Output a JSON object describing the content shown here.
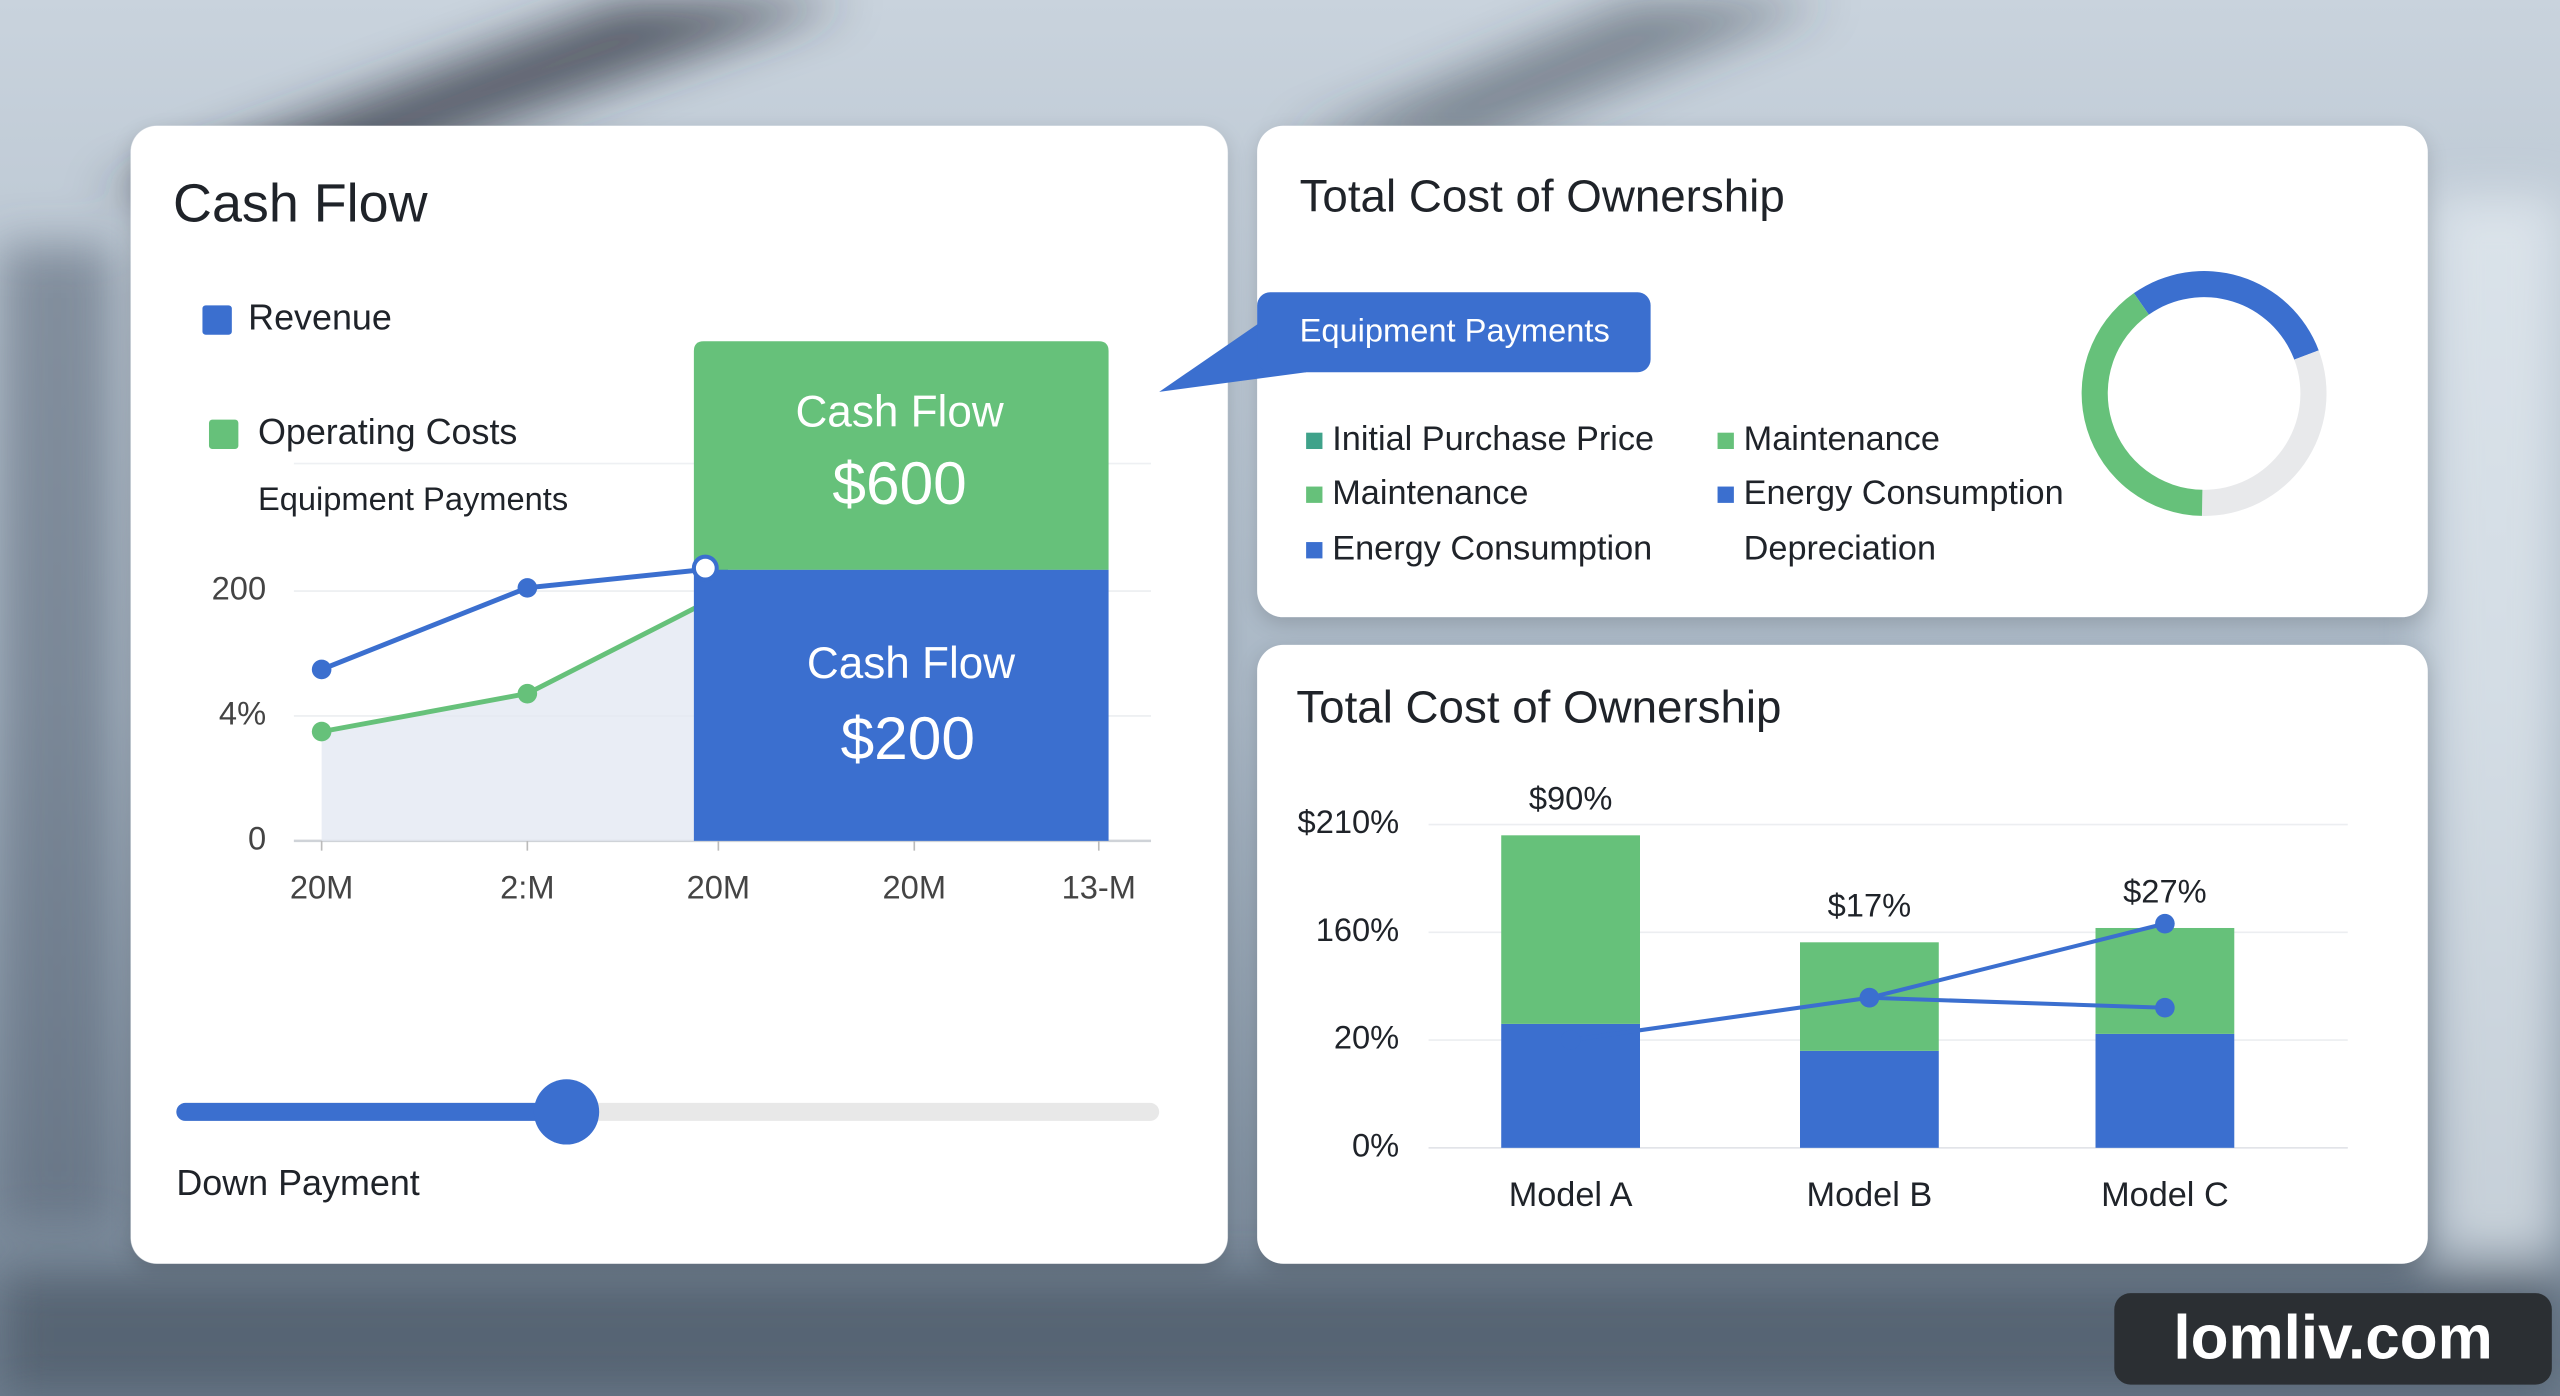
{
  "chart_data": [
    {
      "type": "line",
      "title": "Cash Flow",
      "categories": [
        "20M",
        "2:M",
        "20M",
        "20M",
        "13-M"
      ],
      "series": [
        {
          "name": "Revenue",
          "color": "#3b6fcf",
          "values": [
            77,
            205,
            236,
            null,
            null
          ]
        },
        {
          "name": "Operating Costs",
          "color": "#66c17a",
          "values": [
            3.5,
            39,
            192,
            null,
            null
          ]
        }
      ],
      "legend_note": "Equipment Payments",
      "ylim": [
        0,
        400
      ],
      "yticks": [
        0,
        {
          "value": 4,
          "label": "4%"
        },
        200
      ],
      "scale": "tick-spaced",
      "grid": true,
      "tooltip": {
        "top_label": "Cash Flow",
        "top_value": "$600",
        "bottom_label": "Cash Flow",
        "bottom_value": "$200"
      }
    },
    {
      "type": "pie",
      "title": "Total Cost of Ownership",
      "donut": true,
      "values": [
        29,
        31,
        40
      ],
      "colors": [
        "#3b6fcf",
        "#e8e9eb",
        "#66c17a"
      ],
      "callout": "Equipment Payments",
      "legend": [
        {
          "name": "Initial Purchase Price",
          "color": "#3fa28a"
        },
        {
          "name": "Maintenance",
          "color": "#66c17a"
        },
        {
          "name": "Maintenance",
          "color": "#66c17a"
        },
        {
          "name": "Energy Consumption",
          "color": "#3b6fcf"
        },
        {
          "name": "Energy Consumption",
          "color": "#3b6fcf"
        },
        {
          "name": "Depreciation"
        }
      ]
    },
    {
      "type": "bar",
      "stacked": true,
      "title": "Total Cost of Ownership",
      "categories": [
        "Model A",
        "Model B",
        "Model C"
      ],
      "series": [
        {
          "color": "#3b6fcf",
          "values": [
            41,
            18,
            28
          ]
        },
        {
          "color": "#66c17a",
          "values": [
            164,
            129,
            134
          ]
        },
        {
          "type": "line",
          "color": "#3b6fcf",
          "values": [
            20,
            75,
            164
          ]
        },
        {
          "type": "line",
          "color": "#3b6fcf",
          "values": [
            null,
            75,
            62
          ]
        }
      ],
      "annotations": [
        "$90%",
        "$17%",
        "$27%"
      ],
      "ylim": [
        0,
        210
      ],
      "yticks": [
        {
          "value": 0,
          "label": "0%"
        },
        {
          "value": 20,
          "label": "20%"
        },
        {
          "value": 160,
          "label": "160%"
        },
        {
          "value": 210,
          "label": "$210%"
        }
      ],
      "scale": "tick-spaced",
      "grid": true
    }
  ],
  "slider": {
    "label": "Down Payment"
  },
  "watermark": "lomliv.com"
}
